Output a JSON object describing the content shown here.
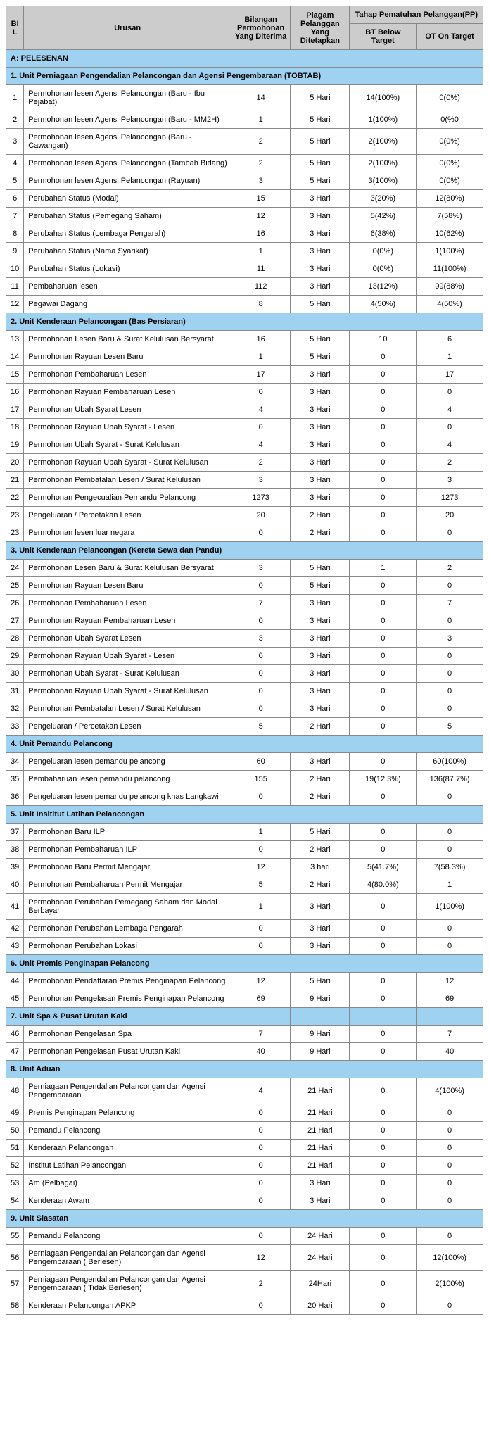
{
  "header": {
    "bil": "BIL",
    "urusan": "Urusan",
    "bilangan": "Bilangan Permohonan Yang Diterima",
    "piagam": "Piagam Pelanggan Yang Ditetapkan",
    "tahap": "Tahap Pematuhan Pelanggan(PP)",
    "bt": "BT Below Target",
    "ot": "OT  On Target"
  },
  "sectionA": "A: PELESENAN",
  "groups": [
    {
      "title": "1. Unit Perniagaan Pengendalian Pelancongan dan Agensi Pengembaraan (TOBTAB)",
      "rows": [
        {
          "bil": "1",
          "urusan": "Permohonan lesen Agensi Pelancongan (Baru - Ibu Pejabat)",
          "bilangan": "14",
          "piagam": "5 Hari",
          "bt": "14(100%)",
          "ot": "0(0%)"
        },
        {
          "bil": "2",
          "urusan": "Permohonan lesen Agensi Pelancongan (Baru - MM2H)",
          "bilangan": "1",
          "piagam": "5 Hari",
          "bt": "1(100%)",
          "ot": "0(%0"
        },
        {
          "bil": "3",
          "urusan": "Permohonan lesen Agensi Pelancongan (Baru - Cawangan)",
          "bilangan": "2",
          "piagam": "5 Hari",
          "bt": "2(100%)",
          "ot": "0(0%)"
        },
        {
          "bil": "4",
          "urusan": "Permohonan lesen Agensi Pelancongan (Tambah Bidang)",
          "bilangan": "2",
          "piagam": "5 Hari",
          "bt": "2(100%)",
          "ot": "0(0%)"
        },
        {
          "bil": "5",
          "urusan": "Permohonan lesen Agensi Pelancongan (Rayuan)",
          "bilangan": "3",
          "piagam": "5 Hari",
          "bt": "3(100%)",
          "ot": "0(0%)"
        },
        {
          "bil": "6",
          "urusan": "Perubahan Status (Modal)",
          "bilangan": "15",
          "piagam": "3 Hari",
          "bt": "3(20%)",
          "ot": "12(80%)"
        },
        {
          "bil": "7",
          "urusan": "Perubahan Status (Pemegang Saham)",
          "bilangan": "12",
          "piagam": "3 Hari",
          "bt": "5(42%)",
          "ot": "7(58%)"
        },
        {
          "bil": "8",
          "urusan": "Perubahan Status (Lembaga Pengarah)",
          "bilangan": "16",
          "piagam": "3 Hari",
          "bt": "6(38%)",
          "ot": "10(62%)"
        },
        {
          "bil": "9",
          "urusan": "Perubahan Status (Nama Syarikat)",
          "bilangan": "1",
          "piagam": "3 Hari",
          "bt": "0(0%)",
          "ot": "1(100%)"
        },
        {
          "bil": "10",
          "urusan": "Perubahan Status (Lokasi)",
          "bilangan": "11",
          "piagam": "3 Hari",
          "bt": "0(0%)",
          "ot": "11(100%)"
        },
        {
          "bil": "11",
          "urusan": "Pembaharuan lesen",
          "bilangan": "112",
          "piagam": "3 Hari",
          "bt": "13(12%)",
          "ot": "99(88%)"
        },
        {
          "bil": "12",
          "urusan": "Pegawai Dagang",
          "bilangan": "8",
          "piagam": "5 Hari",
          "bt": "4(50%)",
          "ot": "4(50%)"
        }
      ]
    },
    {
      "title": "2. Unit Kenderaan Pelancongan (Bas Persiaran)",
      "rows": [
        {
          "bil": "13",
          "urusan": "Permohonan Lesen Baru & Surat Kelulusan Bersyarat",
          "bilangan": "16",
          "piagam": "5 Hari",
          "bt": "10",
          "ot": "6"
        },
        {
          "bil": "14",
          "urusan": "Permohonan Rayuan Lesen Baru",
          "bilangan": "1",
          "piagam": "5 Hari",
          "bt": "0",
          "ot": "1"
        },
        {
          "bil": "15",
          "urusan": "Permohonan Pembaharuan Lesen",
          "bilangan": "17",
          "piagam": "3 Hari",
          "bt": "0",
          "ot": "17"
        },
        {
          "bil": "16",
          "urusan": "Permohonan Rayuan Pembaharuan Lesen",
          "bilangan": "0",
          "piagam": "3 Hari",
          "bt": "0",
          "ot": "0"
        },
        {
          "bil": "17",
          "urusan": "Permohonan Ubah Syarat Lesen",
          "bilangan": "4",
          "piagam": "3 Hari",
          "bt": "0",
          "ot": "4"
        },
        {
          "bil": "18",
          "urusan": "Permohonan Rayuan Ubah Syarat - Lesen",
          "bilangan": "0",
          "piagam": "3 Hari",
          "bt": "0",
          "ot": "0"
        },
        {
          "bil": "19",
          "urusan": "Permohonan Ubah Syarat - Surat Kelulusan",
          "bilangan": "4",
          "piagam": "3 Hari",
          "bt": "0",
          "ot": "4"
        },
        {
          "bil": "20",
          "urusan": "Permohonan Rayuan Ubah Syarat - Surat Kelulusan",
          "bilangan": "2",
          "piagam": "3 Hari",
          "bt": "0",
          "ot": "2"
        },
        {
          "bil": "21",
          "urusan": "Permohonan Pembatalan Lesen / Surat Kelulusan",
          "bilangan": "3",
          "piagam": "3 Hari",
          "bt": "0",
          "ot": "3"
        },
        {
          "bil": "22",
          "urusan": "Permohonan Pengecualian Pemandu Pelancong",
          "bilangan": "1273",
          "piagam": "3 Hari",
          "bt": "0",
          "ot": "1273"
        },
        {
          "bil": "23",
          "urusan": "Pengeluaran / Percetakan Lesen",
          "bilangan": "20",
          "piagam": "2 Hari",
          "bt": "0",
          "ot": "20"
        },
        {
          "bil": "23",
          "urusan": "Permohonan lesen luar negara",
          "bilangan": "0",
          "piagam": "2 Hari",
          "bt": "0",
          "ot": "0"
        }
      ]
    },
    {
      "title": "3. Unit Kenderaan Pelancongan (Kereta Sewa dan Pandu)",
      "rows": [
        {
          "bil": "24",
          "urusan": "Permohonan Lesen Baru & Surat Kelulusan Bersyarat",
          "bilangan": "3",
          "piagam": "5 Hari",
          "bt": "1",
          "ot": "2"
        },
        {
          "bil": "25",
          "urusan": "Permohonan Rayuan Lesen Baru",
          "bilangan": "0",
          "piagam": "5 Hari",
          "bt": "0",
          "ot": "0"
        },
        {
          "bil": "26",
          "urusan": "Permohonan Pembaharuan Lesen",
          "bilangan": "7",
          "piagam": "3 Hari",
          "bt": "0",
          "ot": "7"
        },
        {
          "bil": "27",
          "urusan": "Permohonan Rayuan Pembaharuan Lesen",
          "bilangan": "0",
          "piagam": "3 Hari",
          "bt": "0",
          "ot": "0"
        },
        {
          "bil": "28",
          "urusan": "Permohonan Ubah Syarat Lesen",
          "bilangan": "3",
          "piagam": "3 Hari",
          "bt": "0",
          "ot": "3"
        },
        {
          "bil": "29",
          "urusan": "Permohonan Rayuan Ubah Syarat - Lesen",
          "bilangan": "0",
          "piagam": "3 Hari",
          "bt": "0",
          "ot": "0"
        },
        {
          "bil": "30",
          "urusan": "Permohonan Ubah Syarat - Surat Kelulusan",
          "bilangan": "0",
          "piagam": "3 Hari",
          "bt": "0",
          "ot": "0"
        },
        {
          "bil": "31",
          "urusan": "Permohonan Rayuan Ubah Syarat - Surat Kelulusan",
          "bilangan": "0",
          "piagam": "3 Hari",
          "bt": "0",
          "ot": "0"
        },
        {
          "bil": "32",
          "urusan": "Permohonan Pembatalan Lesen / Surat Kelulusan",
          "bilangan": "0",
          "piagam": "3 Hari",
          "bt": "0",
          "ot": "0"
        },
        {
          "bil": "33",
          "urusan": "Pengeluaran / Percetakan Lesen",
          "bilangan": "5",
          "piagam": "2 Hari",
          "bt": "0",
          "ot": "5"
        }
      ]
    },
    {
      "title": "4. Unit Pemandu Pelancong",
      "rows": [
        {
          "bil": "34",
          "urusan": "Pengeluaran lesen pemandu pelancong",
          "bilangan": "60",
          "piagam": "3 Hari",
          "bt": "0",
          "ot": "60(100%)"
        },
        {
          "bil": "35",
          "urusan": "Pembaharuan lesen pemandu pelancong",
          "bilangan": "155",
          "piagam": "2 Hari",
          "bt": "19(12.3%)",
          "ot": "136(87.7%)"
        },
        {
          "bil": "36",
          "urusan": "Pengeluaran lesen pemandu pelancong khas Langkawi",
          "bilangan": "0",
          "piagam": "2 Hari",
          "bt": "0",
          "ot": "0"
        }
      ]
    },
    {
      "title": "5. Unit Insititut Latihan Pelancongan",
      "rows": [
        {
          "bil": "37",
          "urusan": "Permohonan Baru ILP",
          "bilangan": "1",
          "piagam": "5 Hari",
          "bt": "0",
          "ot": "0"
        },
        {
          "bil": "38",
          "urusan": "Permohonan Pembaharuan ILP",
          "bilangan": "0",
          "piagam": "2 Hari",
          "bt": "0",
          "ot": "0"
        },
        {
          "bil": "39",
          "urusan": "Permohonan Baru Permit Mengajar",
          "bilangan": "12",
          "piagam": "3 hari",
          "bt": "5(41.7%)",
          "ot": "7(58.3%)"
        },
        {
          "bil": "40",
          "urusan": "Permohonan Pembaharuan Permit Mengajar",
          "bilangan": "5",
          "piagam": "2 Hari",
          "bt": "4(80.0%)",
          "ot": "1"
        },
        {
          "bil": "41",
          "urusan": "Permohonan Perubahan Pemegang Saham dan Modal Berbayar",
          "bilangan": "1",
          "piagam": "3 Hari",
          "bt": "0",
          "ot": "1(100%)"
        },
        {
          "bil": "42",
          "urusan": "Permohonan Perubahan Lembaga Pengarah",
          "bilangan": "0",
          "piagam": "3 Hari",
          "bt": "0",
          "ot": "0"
        },
        {
          "bil": "43",
          "urusan": "Permohonan Perubahan Lokasi",
          "bilangan": "0",
          "piagam": "3 Hari",
          "bt": "0",
          "ot": "0"
        }
      ]
    },
    {
      "title": " 6. Unit Premis Penginapan Pelancong",
      "rows": [
        {
          "bil": "44",
          "urusan": "Permohonan Pendaftaran Premis Penginapan Pelancong",
          "bilangan": "12",
          "piagam": "5 Hari",
          "bt": "0",
          "ot": "12"
        },
        {
          "bil": "45",
          "urusan": "Permohonan Pengelasan Premis Penginapan Pelancong",
          "bilangan": "69",
          "piagam": "9 Hari",
          "bt": "0",
          "ot": "69"
        }
      ]
    },
    {
      "title": "7. Unit Spa & Pusat Urutan Kaki",
      "emptyCells": true,
      "rows": [
        {
          "bil": "46",
          "urusan": "Permohonan Pengelasan Spa",
          "bilangan": "7",
          "piagam": "9 Hari",
          "bt": "0",
          "ot": "7"
        },
        {
          "bil": "47",
          "urusan": "Permohonan Pengelasan Pusat Urutan Kaki",
          "bilangan": "40",
          "piagam": "9 Hari",
          "bt": "0",
          "ot": "40"
        }
      ]
    },
    {
      "title": "8. Unit Aduan",
      "rows": [
        {
          "bil": "48",
          "urusan": "Perniagaan Pengendalian Pelancongan dan Agensi Pengembaraan",
          "bilangan": "4",
          "piagam": "21 Hari",
          "bt": "0",
          "ot": "4(100%)"
        },
        {
          "bil": "49",
          "urusan": "Premis Penginapan Pelancong",
          "bilangan": "0",
          "piagam": "21 Hari",
          "bt": "0",
          "ot": "0"
        },
        {
          "bil": "50",
          "urusan": "Pemandu Pelancong",
          "bilangan": "0",
          "piagam": "21 Hari",
          "bt": "0",
          "ot": "0"
        },
        {
          "bil": "51",
          "urusan": "Kenderaan Pelancongan",
          "bilangan": "0",
          "piagam": "21 Hari",
          "bt": "0",
          "ot": "0"
        },
        {
          "bil": "52",
          "urusan": "Institut Latihan Pelancongan",
          "bilangan": "0",
          "piagam": "21 Hari",
          "bt": "0",
          "ot": "0"
        },
        {
          "bil": "53",
          "urusan": "Am (Pelbagai)",
          "bilangan": "0",
          "piagam": "3 Hari",
          "bt": "0",
          "ot": "0"
        },
        {
          "bil": "54",
          "urusan": "Kenderaan Awam",
          "bilangan": "0",
          "piagam": "3 Hari",
          "bt": "0",
          "ot": "0"
        }
      ]
    },
    {
      "title": "9. Unit Siasatan",
      "rows": [
        {
          "bil": "55",
          "urusan": "Pemandu Pelancong",
          "bilangan": "0",
          "piagam": "24 Hari",
          "bt": "0",
          "ot": "0"
        },
        {
          "bil": "56",
          "urusan": "Perniagaan Pengendalian Pelancongan dan Agensi Pengembaraan ( Berlesen)",
          "bilangan": "12",
          "piagam": "24 Hari",
          "bt": "0",
          "ot": "12(100%)"
        },
        {
          "bil": "57",
          "urusan": "Perniagaan Pengendalian Pelancongan dan Agensi Pengembaraan ( Tidak Berlesen)",
          "bilangan": "2",
          "piagam": "24Hari",
          "bt": "0",
          "ot": "2(100%)"
        },
        {
          "bil": "58",
          "urusan": "Kenderaan Pelancongan APKP",
          "bilangan": "0",
          "piagam": "20 Hari",
          "bt": "0",
          "ot": "0"
        }
      ]
    }
  ]
}
